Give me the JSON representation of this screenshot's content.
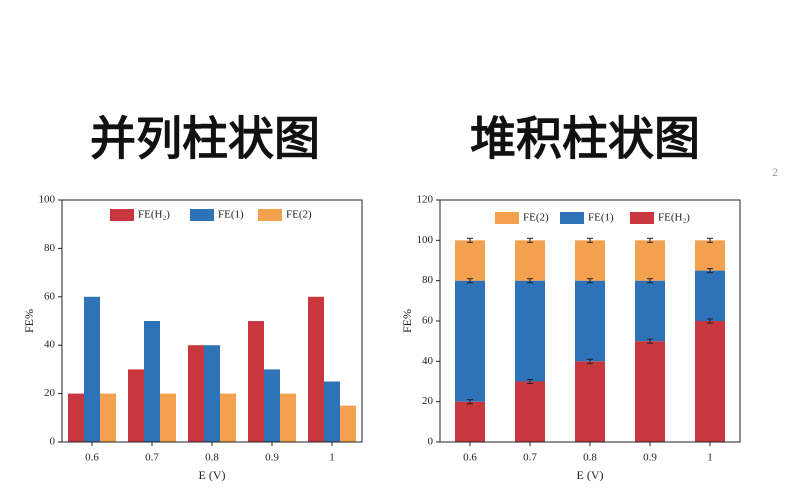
{
  "page_number": "2",
  "chart_data": [
    {
      "type": "bar",
      "title": "并列柱状图",
      "x_label": "E (V)",
      "y_label": "FE%",
      "categories": [
        "0.6",
        "0.7",
        "0.8",
        "0.9",
        "1"
      ],
      "series": [
        {
          "name": "FE(H₂)",
          "color": "#c8373d",
          "values": [
            20,
            30,
            40,
            50,
            60
          ]
        },
        {
          "name": "FE(1)",
          "color": "#2e73b8",
          "values": [
            60,
            50,
            40,
            30,
            25
          ]
        },
        {
          "name": "FE(2)",
          "color": "#f3a14e",
          "values": [
            20,
            20,
            20,
            20,
            15
          ]
        }
      ],
      "ylim": [
        0,
        100
      ],
      "yticks": [
        0,
        20,
        40,
        60,
        80,
        100
      ],
      "legend": "top"
    },
    {
      "type": "stacked-bar",
      "title": "堆积柱状图",
      "x_label": "E (V)",
      "y_label": "FE%",
      "categories": [
        "0.6",
        "0.7",
        "0.8",
        "0.9",
        "1"
      ],
      "series": [
        {
          "name": "FE(H₂)",
          "color": "#c8373d",
          "values": [
            20,
            30,
            40,
            50,
            60
          ],
          "errors": [
            1,
            1,
            1,
            1,
            1
          ]
        },
        {
          "name": "FE(1)",
          "color": "#2e73b8",
          "values": [
            60,
            50,
            40,
            30,
            25
          ],
          "errors": [
            1,
            1,
            1,
            1,
            1
          ]
        },
        {
          "name": "FE(2)",
          "color": "#f3a14e",
          "values": [
            20,
            20,
            20,
            20,
            15
          ],
          "errors": [
            1,
            1,
            1,
            1,
            1
          ]
        }
      ],
      "ylim": [
        0,
        120
      ],
      "yticks": [
        0,
        20,
        40,
        60,
        80,
        100,
        120
      ],
      "legend": "top"
    }
  ]
}
